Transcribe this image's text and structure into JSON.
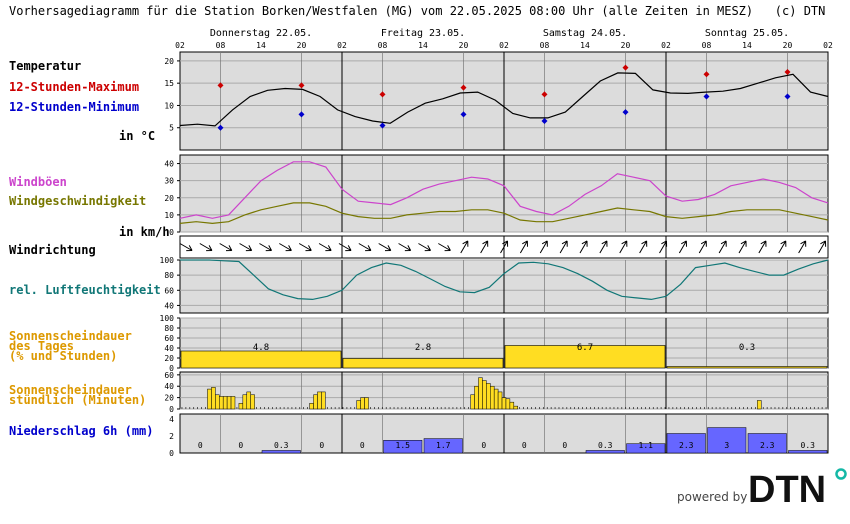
{
  "header": {
    "title": "Vorhersagediagramm für die Station Borken/Westfalen (MG) vom 22.05.2025 08:00 Uhr (alle Zeiten in MESZ)   (c) DTN"
  },
  "labels": {
    "temp": "Temperatur",
    "tmax": "12-Stunden-Maximum",
    "tmin": "12-Stunden-Minimum",
    "temp_unit": "in °C",
    "gust": "Windböen",
    "wind": "Windgeschwindigkeit",
    "wind_unit": "in km/h",
    "dir": "Windrichtung",
    "hum": "rel. Luftfeuchtigkeit",
    "sun_day_1": "Sonnenscheindauer",
    "sun_day_2": "des Tages",
    "sun_day_3": "(% und Stunden)",
    "sun_hour_1": "Sonnenscheindauer",
    "sun_hour_2": "stündlich (Minuten)",
    "precip": "Niederschlag 6h (mm)"
  },
  "colors": {
    "temp_line": "#000000",
    "tmax": "#cc0000",
    "tmin": "#0000cc",
    "gust": "#cc44cc",
    "wind": "#777700",
    "hum": "#117777",
    "sun": "#ffdd22",
    "sun_label": "#dd9900",
    "precip": "#6666ff",
    "precip_label": "#0000cc",
    "plot_bg": "#dcdcdc"
  },
  "footer": {
    "powered_by": "powered by",
    "logo_text": "DTN"
  },
  "chart_data": [
    {
      "type": "line",
      "name": "temperature",
      "x_tick_labels": [
        "02",
        "08",
        "14",
        "20",
        "02",
        "08",
        "14",
        "20",
        "02",
        "08",
        "14",
        "20",
        "02",
        "08",
        "14",
        "20",
        "02"
      ],
      "days": [
        "Donnerstag 22.05.",
        "Freitag 23.05.",
        "Samstag 24.05.",
        "Sonntag 25.05."
      ],
      "ylim": [
        0,
        22
      ],
      "yticks": [
        5,
        10,
        15,
        20
      ],
      "series": [
        {
          "values": [
            5.5,
            5.8,
            5.4,
            9.0,
            12.0,
            13.4,
            13.8,
            13.6,
            12.0,
            9.0,
            7.5,
            6.5,
            6.0,
            8.5,
            10.5,
            11.5,
            12.8,
            13.0,
            11.2,
            8.2,
            7.2,
            7.2,
            8.5,
            12.0,
            15.5,
            17.3,
            17.2,
            13.5,
            12.8,
            12.7,
            13.0,
            13.2,
            13.8,
            15.0,
            16.2,
            17.0,
            13.0,
            12.0
          ]
        }
      ],
      "tmax": [
        {
          "x": 1,
          "v": 14.5
        },
        {
          "x": 3,
          "v": 14.5
        },
        {
          "x": 5,
          "v": 12.5
        },
        {
          "x": 7,
          "v": 14.0
        },
        {
          "x": 9,
          "v": 12.5
        },
        {
          "x": 11,
          "v": 18.5
        },
        {
          "x": 13,
          "v": 17.0
        },
        {
          "x": 15,
          "v": 17.5
        }
      ],
      "tmin": [
        {
          "x": 1,
          "v": 5.0
        },
        {
          "x": 3,
          "v": 8.0
        },
        {
          "x": 5,
          "v": 5.5
        },
        {
          "x": 7,
          "v": 8.0
        },
        {
          "x": 9,
          "v": 6.5
        },
        {
          "x": 11,
          "v": 8.5
        },
        {
          "x": 13,
          "v": 12.0
        },
        {
          "x": 15,
          "v": 12.0
        }
      ]
    },
    {
      "type": "line",
      "name": "wind",
      "ylim": [
        0,
        45
      ],
      "yticks": [
        0,
        10,
        20,
        30,
        40
      ],
      "series": [
        {
          "name": "Windböen",
          "values": [
            8,
            10,
            8,
            10,
            20,
            30,
            36,
            41,
            41,
            38,
            25,
            18,
            17,
            16,
            20,
            25,
            28,
            30,
            32,
            31,
            27,
            15,
            12,
            10,
            15,
            22,
            27,
            34,
            32,
            30,
            21,
            18,
            19,
            22,
            27,
            29,
            31,
            29,
            26,
            20,
            17
          ]
        },
        {
          "name": "Windgeschwindigkeit",
          "values": [
            5,
            6,
            5,
            6,
            10,
            13,
            15,
            17,
            17,
            15,
            11,
            9,
            8,
            8,
            10,
            11,
            12,
            12,
            13,
            13,
            11,
            7,
            6,
            6,
            8,
            10,
            12,
            14,
            13,
            12,
            9,
            8,
            9,
            10,
            12,
            13,
            13,
            13,
            11,
            9,
            7
          ]
        }
      ]
    },
    {
      "type": "vector",
      "name": "wind_direction",
      "directions_deg": [
        300,
        300,
        300,
        300,
        300,
        300,
        300,
        300,
        300,
        300,
        300,
        300,
        300,
        300,
        300,
        300,
        300,
        300,
        300,
        300,
        300,
        300,
        300,
        300,
        300,
        300,
        300,
        300,
        210,
        210,
        210,
        210,
        210,
        210,
        210,
        210,
        210,
        210,
        210,
        210,
        210,
        210,
        210,
        210,
        210,
        210,
        210,
        210,
        210,
        210,
        210,
        210,
        210,
        210,
        210,
        210,
        210,
        210,
        210,
        210,
        210,
        210,
        210,
        210,
        210
      ]
    },
    {
      "type": "line",
      "name": "humidity",
      "ylim": [
        0,
        100
      ],
      "yticks": [
        40,
        60,
        80,
        100
      ],
      "series": [
        {
          "values": [
            100,
            100,
            100,
            99,
            98,
            80,
            62,
            54,
            49,
            48,
            52,
            60,
            80,
            90,
            96,
            93,
            85,
            75,
            65,
            58,
            57,
            64,
            82,
            96,
            97,
            95,
            90,
            82,
            72,
            60,
            52,
            50,
            48,
            52,
            68,
            90,
            93,
            96,
            90,
            85,
            80,
            80,
            88,
            95,
            100
          ]
        }
      ]
    },
    {
      "type": "bar",
      "name": "sunshine_daily_percent",
      "ylim": [
        0,
        100
      ],
      "yticks": [
        0,
        20,
        40,
        60,
        80,
        100
      ],
      "values": [
        34,
        19,
        45,
        3
      ],
      "data_labels": [
        "4.8",
        "2.8",
        "6.7",
        "0.3"
      ]
    },
    {
      "type": "bar",
      "name": "sunshine_hourly_minutes",
      "ylim": [
        0,
        65
      ],
      "yticks": [
        0,
        20,
        40,
        60
      ],
      "values": [
        0,
        0,
        0,
        0,
        0,
        0,
        0,
        35,
        38,
        25,
        22,
        22,
        22,
        22,
        0,
        10,
        25,
        30,
        25,
        0,
        0,
        0,
        0,
        0,
        0,
        0,
        0,
        0,
        0,
        0,
        0,
        0,
        0,
        10,
        25,
        30,
        30,
        0,
        0,
        0,
        0,
        0,
        0,
        0,
        0,
        15,
        20,
        20,
        0,
        0,
        0,
        0,
        0,
        0,
        0,
        0,
        0,
        0,
        0,
        0,
        0,
        0,
        0,
        0,
        0,
        0,
        0,
        0,
        0,
        0,
        0,
        0,
        0,
        0,
        25,
        40,
        55,
        50,
        45,
        40,
        35,
        30,
        20,
        18,
        12,
        5,
        0,
        0,
        0,
        0,
        0,
        0,
        0,
        0,
        0,
        0,
        0,
        0,
        0,
        0,
        0,
        0,
        0,
        0,
        0,
        0,
        0,
        0,
        0,
        0,
        0,
        0,
        0,
        0,
        0,
        0,
        0,
        0,
        0,
        0,
        0,
        0,
        0,
        0,
        0,
        0,
        0,
        0,
        0,
        0,
        0,
        0,
        0,
        0,
        0,
        0,
        0,
        0,
        0,
        0,
        0,
        0,
        0,
        0,
        0,
        0,
        0,
        15,
        0,
        0,
        0,
        0,
        0,
        0,
        0,
        0,
        0,
        0,
        0,
        0,
        0,
        0,
        0,
        0,
        0
      ]
    },
    {
      "type": "bar",
      "name": "precipitation_6h",
      "ylim": [
        0,
        4.6
      ],
      "values": [
        0,
        0,
        0.3,
        0,
        0,
        1.5,
        1.7,
        0,
        0,
        0,
        0.3,
        1.1,
        2.3,
        3,
        2.3,
        0.3
      ],
      "data_labels": [
        "0",
        "0",
        "0.3",
        "0",
        "0",
        "1.5",
        "1.7",
        "0",
        "0",
        "0",
        "0.3",
        "1.1",
        "2.3",
        "3",
        "2.3",
        "0.3"
      ]
    }
  ]
}
